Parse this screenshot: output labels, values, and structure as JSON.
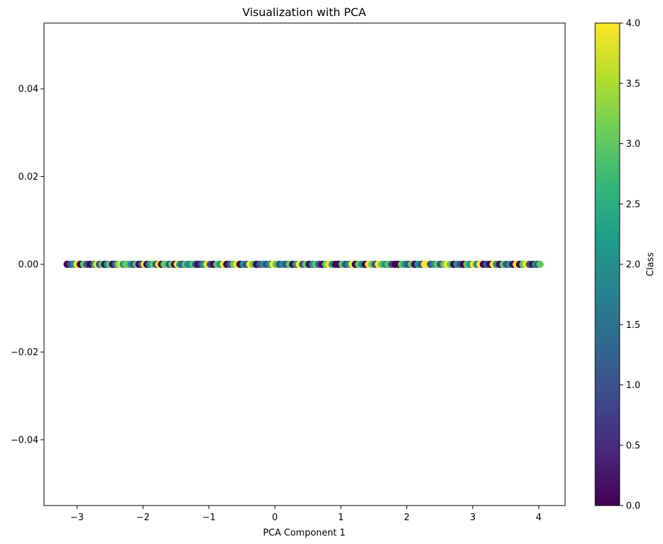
{
  "chart_data": {
    "type": "scatter",
    "title": "Visualization with PCA",
    "xlabel": "PCA Component 1",
    "ylabel": "",
    "xlim": [
      -3.5,
      4.4
    ],
    "ylim": [
      -0.055,
      0.055
    ],
    "xticks": [
      {
        "value": -3,
        "label": "−3"
      },
      {
        "value": -2,
        "label": "−2"
      },
      {
        "value": -1,
        "label": "−1"
      },
      {
        "value": 0,
        "label": "0"
      },
      {
        "value": 1,
        "label": "1"
      },
      {
        "value": 2,
        "label": "2"
      },
      {
        "value": 3,
        "label": "3"
      },
      {
        "value": 4,
        "label": "4"
      }
    ],
    "yticks": [
      {
        "value": -0.04,
        "label": "−0.04"
      },
      {
        "value": -0.02,
        "label": "−0.02"
      },
      {
        "value": 0.0,
        "label": "0.00"
      },
      {
        "value": 0.02,
        "label": "0.02"
      },
      {
        "value": 0.04,
        "label": "0.04"
      }
    ],
    "grid": false,
    "colormap": "viridis",
    "colorbar": {
      "label": "Class",
      "range": [
        0,
        4
      ],
      "ticks": [
        {
          "value": 0.0,
          "label": "0.0"
        },
        {
          "value": 0.5,
          "label": "0.5"
        },
        {
          "value": 1.0,
          "label": "1.0"
        },
        {
          "value": 1.5,
          "label": "1.5"
        },
        {
          "value": 2.0,
          "label": "2.0"
        },
        {
          "value": 2.5,
          "label": "2.5"
        },
        {
          "value": 3.0,
          "label": "3.0"
        },
        {
          "value": 3.5,
          "label": "3.5"
        },
        {
          "value": 4.0,
          "label": "4.0"
        }
      ]
    },
    "colormap_stops": [
      "#440154",
      "#482878",
      "#3e4a89",
      "#31688e",
      "#26828e",
      "#1f9e89",
      "#35b779",
      "#6dcd59",
      "#b4de2c",
      "#fde725"
    ],
    "points": [
      {
        "x": -3.15,
        "y": 0,
        "class": 0
      },
      {
        "x": -3.1,
        "y": 0,
        "class": 1
      },
      {
        "x": -3.05,
        "y": 0,
        "class": 2
      },
      {
        "x": -3.0,
        "y": 0,
        "class": 4
      },
      {
        "x": -2.95,
        "y": 0,
        "class": 0
      },
      {
        "x": -2.9,
        "y": 0,
        "class": 3
      },
      {
        "x": -2.85,
        "y": 0,
        "class": 1
      },
      {
        "x": -2.8,
        "y": 0,
        "class": 0
      },
      {
        "x": -2.74,
        "y": 0,
        "class": 2
      },
      {
        "x": -2.7,
        "y": 0,
        "class": 4
      },
      {
        "x": -2.66,
        "y": 0,
        "class": 1
      },
      {
        "x": -2.62,
        "y": 0,
        "class": 3
      },
      {
        "x": -2.58,
        "y": 0,
        "class": 0
      },
      {
        "x": -2.54,
        "y": 0,
        "class": 2
      },
      {
        "x": -2.5,
        "y": 0,
        "class": 3
      },
      {
        "x": -2.46,
        "y": 0,
        "class": 0
      },
      {
        "x": -2.42,
        "y": 0,
        "class": 1
      },
      {
        "x": -2.38,
        "y": 0,
        "class": 3
      },
      {
        "x": -2.34,
        "y": 0,
        "class": 4
      },
      {
        "x": -2.3,
        "y": 0,
        "class": 2
      },
      {
        "x": -2.26,
        "y": 0,
        "class": 3
      },
      {
        "x": -2.22,
        "y": 0,
        "class": 3
      },
      {
        "x": -2.18,
        "y": 0,
        "class": 2
      },
      {
        "x": -2.14,
        "y": 0,
        "class": 1
      },
      {
        "x": -2.1,
        "y": 0,
        "class": 3
      },
      {
        "x": -2.06,
        "y": 0,
        "class": 0
      },
      {
        "x": -2.02,
        "y": 0,
        "class": 1
      },
      {
        "x": -1.98,
        "y": 0,
        "class": 4
      },
      {
        "x": -1.94,
        "y": 0,
        "class": 0
      },
      {
        "x": -1.9,
        "y": 0,
        "class": 2
      },
      {
        "x": -1.85,
        "y": 0,
        "class": 3
      },
      {
        "x": -1.8,
        "y": 0,
        "class": 1
      },
      {
        "x": -1.76,
        "y": 0,
        "class": 4
      },
      {
        "x": -1.72,
        "y": 0,
        "class": 0
      },
      {
        "x": -1.68,
        "y": 0,
        "class": 3
      },
      {
        "x": -1.64,
        "y": 0,
        "class": 3
      },
      {
        "x": -1.6,
        "y": 0,
        "class": 1
      },
      {
        "x": -1.56,
        "y": 0,
        "class": 3
      },
      {
        "x": -1.52,
        "y": 0,
        "class": 0
      },
      {
        "x": -1.48,
        "y": 0,
        "class": 4
      },
      {
        "x": -1.44,
        "y": 0,
        "class": 2
      },
      {
        "x": -1.4,
        "y": 0,
        "class": 1
      },
      {
        "x": -1.36,
        "y": 0,
        "class": 3
      },
      {
        "x": -1.32,
        "y": 0,
        "class": 2
      },
      {
        "x": -1.28,
        "y": 0,
        "class": 2
      },
      {
        "x": -1.24,
        "y": 0,
        "class": 3
      },
      {
        "x": -1.2,
        "y": 0,
        "class": 1
      },
      {
        "x": -1.16,
        "y": 0,
        "class": 0
      },
      {
        "x": -1.12,
        "y": 0,
        "class": 1
      },
      {
        "x": -1.08,
        "y": 0,
        "class": 2
      },
      {
        "x": -1.03,
        "y": 0,
        "class": 4
      },
      {
        "x": -0.98,
        "y": 0,
        "class": 1
      },
      {
        "x": -0.93,
        "y": 0,
        "class": 0
      },
      {
        "x": -0.88,
        "y": 0,
        "class": 3
      },
      {
        "x": -0.83,
        "y": 0,
        "class": 2
      },
      {
        "x": -0.78,
        "y": 0,
        "class": 4
      },
      {
        "x": -0.73,
        "y": 0,
        "class": 0
      },
      {
        "x": -0.68,
        "y": 0,
        "class": 1
      },
      {
        "x": -0.63,
        "y": 0,
        "class": 3
      },
      {
        "x": -0.58,
        "y": 0,
        "class": 4
      },
      {
        "x": -0.53,
        "y": 0,
        "class": 0
      },
      {
        "x": -0.48,
        "y": 0,
        "class": 2
      },
      {
        "x": -0.43,
        "y": 0,
        "class": 1
      },
      {
        "x": -0.38,
        "y": 0,
        "class": 4
      },
      {
        "x": -0.33,
        "y": 0,
        "class": 3
      },
      {
        "x": -0.28,
        "y": 0,
        "class": 0
      },
      {
        "x": -0.23,
        "y": 0,
        "class": 1
      },
      {
        "x": -0.18,
        "y": 0,
        "class": 2
      },
      {
        "x": -0.13,
        "y": 0,
        "class": 1
      },
      {
        "x": -0.08,
        "y": 0,
        "class": 2
      },
      {
        "x": -0.03,
        "y": 0,
        "class": 4
      },
      {
        "x": 0.02,
        "y": 0,
        "class": 3
      },
      {
        "x": 0.07,
        "y": 0,
        "class": 1
      },
      {
        "x": 0.12,
        "y": 0,
        "class": 2
      },
      {
        "x": 0.17,
        "y": 0,
        "class": 1
      },
      {
        "x": 0.22,
        "y": 0,
        "class": 3
      },
      {
        "x": 0.27,
        "y": 0,
        "class": 0
      },
      {
        "x": 0.32,
        "y": 0,
        "class": 2
      },
      {
        "x": 0.37,
        "y": 0,
        "class": 4
      },
      {
        "x": 0.42,
        "y": 0,
        "class": 1
      },
      {
        "x": 0.47,
        "y": 0,
        "class": 3
      },
      {
        "x": 0.52,
        "y": 0,
        "class": 0
      },
      {
        "x": 0.57,
        "y": 0,
        "class": 2
      },
      {
        "x": 0.62,
        "y": 0,
        "class": 3
      },
      {
        "x": 0.67,
        "y": 0,
        "class": 1
      },
      {
        "x": 0.72,
        "y": 0,
        "class": 0
      },
      {
        "x": 0.77,
        "y": 0,
        "class": 3
      },
      {
        "x": 0.82,
        "y": 0,
        "class": 4
      },
      {
        "x": 0.87,
        "y": 0,
        "class": 2
      },
      {
        "x": 0.92,
        "y": 0,
        "class": 0
      },
      {
        "x": 0.97,
        "y": 0,
        "class": 0
      },
      {
        "x": 1.02,
        "y": 0,
        "class": 3
      },
      {
        "x": 1.07,
        "y": 0,
        "class": 1
      },
      {
        "x": 1.12,
        "y": 0,
        "class": 2
      },
      {
        "x": 1.17,
        "y": 0,
        "class": 4
      },
      {
        "x": 1.22,
        "y": 0,
        "class": 0
      },
      {
        "x": 1.27,
        "y": 0,
        "class": 3
      },
      {
        "x": 1.32,
        "y": 0,
        "class": 2
      },
      {
        "x": 1.37,
        "y": 0,
        "class": 0
      },
      {
        "x": 1.42,
        "y": 0,
        "class": 4
      },
      {
        "x": 1.47,
        "y": 0,
        "class": 3
      },
      {
        "x": 1.52,
        "y": 0,
        "class": 1
      },
      {
        "x": 1.57,
        "y": 0,
        "class": 4
      },
      {
        "x": 1.62,
        "y": 0,
        "class": 3
      },
      {
        "x": 1.67,
        "y": 0,
        "class": 2
      },
      {
        "x": 1.72,
        "y": 0,
        "class": 3
      },
      {
        "x": 1.77,
        "y": 0,
        "class": 1
      },
      {
        "x": 1.82,
        "y": 0,
        "class": 0
      },
      {
        "x": 1.87,
        "y": 0,
        "class": 0
      },
      {
        "x": 1.92,
        "y": 0,
        "class": 3
      },
      {
        "x": 1.97,
        "y": 0,
        "class": 2
      },
      {
        "x": 2.02,
        "y": 0,
        "class": 1
      },
      {
        "x": 2.07,
        "y": 0,
        "class": 3
      },
      {
        "x": 2.12,
        "y": 0,
        "class": 0
      },
      {
        "x": 2.17,
        "y": 0,
        "class": 2
      },
      {
        "x": 2.22,
        "y": 0,
        "class": 1
      },
      {
        "x": 2.27,
        "y": 0,
        "class": 4
      },
      {
        "x": 2.31,
        "y": 0,
        "class": 4
      },
      {
        "x": 2.36,
        "y": 0,
        "class": 1
      },
      {
        "x": 2.41,
        "y": 0,
        "class": 2
      },
      {
        "x": 2.46,
        "y": 0,
        "class": 3
      },
      {
        "x": 2.51,
        "y": 0,
        "class": 1
      },
      {
        "x": 2.56,
        "y": 0,
        "class": 3
      },
      {
        "x": 2.61,
        "y": 0,
        "class": 4
      },
      {
        "x": 2.66,
        "y": 0,
        "class": 3
      },
      {
        "x": 2.71,
        "y": 0,
        "class": 0
      },
      {
        "x": 2.76,
        "y": 0,
        "class": 2
      },
      {
        "x": 2.81,
        "y": 0,
        "class": 1
      },
      {
        "x": 2.86,
        "y": 0,
        "class": 0
      },
      {
        "x": 2.91,
        "y": 0,
        "class": 3
      },
      {
        "x": 2.96,
        "y": 0,
        "class": 2
      },
      {
        "x": 3.01,
        "y": 0,
        "class": 4
      },
      {
        "x": 3.06,
        "y": 0,
        "class": 2
      },
      {
        "x": 3.11,
        "y": 0,
        "class": 4
      },
      {
        "x": 3.16,
        "y": 0,
        "class": 0
      },
      {
        "x": 3.21,
        "y": 0,
        "class": 1
      },
      {
        "x": 3.26,
        "y": 0,
        "class": 0
      },
      {
        "x": 3.31,
        "y": 0,
        "class": 4
      },
      {
        "x": 3.36,
        "y": 0,
        "class": 2
      },
      {
        "x": 3.41,
        "y": 0,
        "class": 0
      },
      {
        "x": 3.46,
        "y": 0,
        "class": 3
      },
      {
        "x": 3.51,
        "y": 0,
        "class": 1
      },
      {
        "x": 3.56,
        "y": 0,
        "class": 2
      },
      {
        "x": 3.61,
        "y": 0,
        "class": 0
      },
      {
        "x": 3.66,
        "y": 0,
        "class": 4
      },
      {
        "x": 3.71,
        "y": 0,
        "class": 0
      },
      {
        "x": 3.76,
        "y": 0,
        "class": 3
      },
      {
        "x": 3.81,
        "y": 0,
        "class": 4
      },
      {
        "x": 3.86,
        "y": 0,
        "class": 1
      },
      {
        "x": 3.91,
        "y": 0,
        "class": 0
      },
      {
        "x": 3.95,
        "y": 0,
        "class": 2
      },
      {
        "x": 3.99,
        "y": 0,
        "class": 1
      },
      {
        "x": 4.02,
        "y": 0,
        "class": 3
      }
    ]
  }
}
